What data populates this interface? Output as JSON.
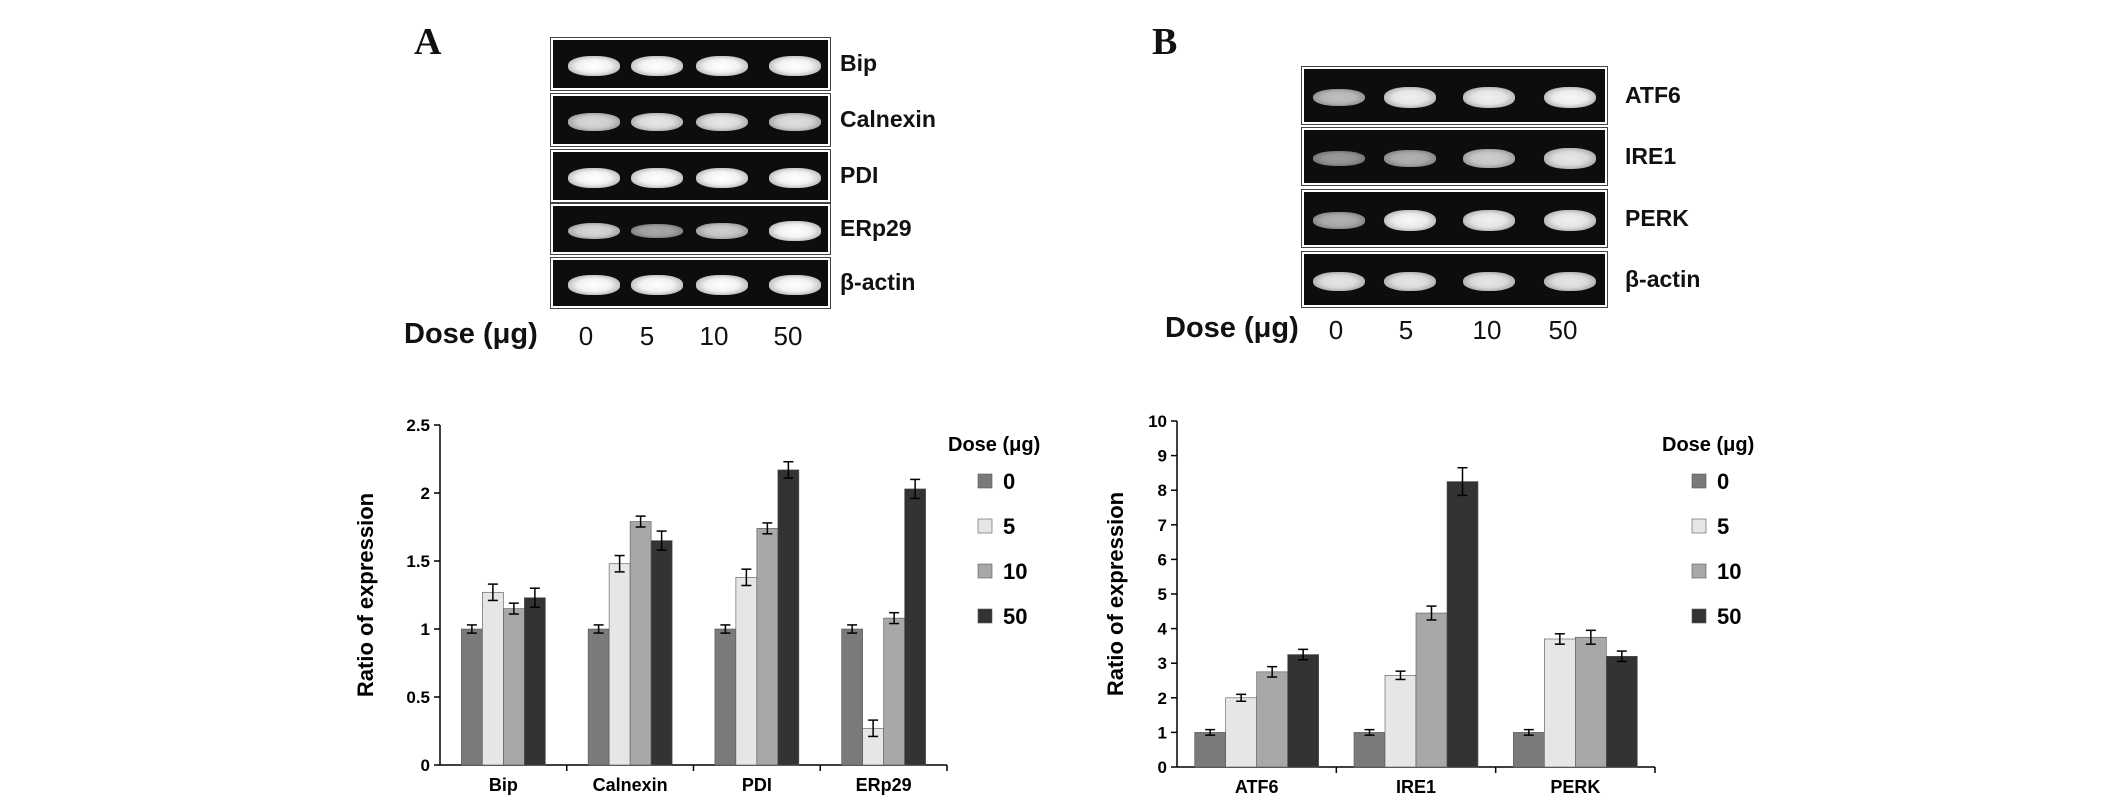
{
  "panels": [
    {
      "letter": "A",
      "gel_rows": [
        {
          "label": "Bip",
          "intensity": [
            1.0,
            1.0,
            1.0,
            1.0
          ]
        },
        {
          "label": "Calnexin",
          "intensity": [
            0.75,
            0.85,
            0.85,
            0.8
          ]
        },
        {
          "label": "PDI",
          "intensity": [
            1.0,
            1.0,
            1.0,
            1.0
          ]
        },
        {
          "label": "ERp29",
          "intensity": [
            0.75,
            0.45,
            0.7,
            1.0
          ]
        },
        {
          "label": "β-actin",
          "intensity": [
            1.0,
            1.0,
            1.0,
            1.0
          ]
        }
      ],
      "dose_label": "Dose (μg)",
      "doses": [
        "0",
        "5",
        "10",
        "50"
      ]
    },
    {
      "letter": "B",
      "gel_rows": [
        {
          "label": "ATF6",
          "intensity": [
            0.6,
            0.9,
            0.9,
            0.95
          ]
        },
        {
          "label": "IRE1",
          "intensity": [
            0.35,
            0.5,
            0.7,
            0.85
          ]
        },
        {
          "label": "PERK",
          "intensity": [
            0.5,
            0.95,
            0.9,
            0.9
          ]
        },
        {
          "label": "β-actin",
          "intensity": [
            0.85,
            0.85,
            0.85,
            0.85
          ]
        }
      ],
      "dose_label": "Dose (μg)",
      "doses": [
        "0",
        "5",
        "10",
        "50"
      ]
    }
  ],
  "series_colors": [
    "#7a7a7a",
    "#e6e6e6",
    "#a8a8a8",
    "#333333"
  ],
  "chart_data": [
    {
      "type": "bar",
      "categories": [
        "Bip",
        "Calnexin",
        "PDI",
        "ERp29"
      ],
      "series": [
        {
          "name": "0",
          "values": [
            1.0,
            1.0,
            1.0,
            1.0
          ],
          "errors": [
            0.03,
            0.03,
            0.03,
            0.03
          ]
        },
        {
          "name": "5",
          "values": [
            1.27,
            1.48,
            1.38,
            0.27
          ],
          "errors": [
            0.06,
            0.06,
            0.06,
            0.06
          ]
        },
        {
          "name": "10",
          "values": [
            1.15,
            1.79,
            1.74,
            1.08
          ],
          "errors": [
            0.04,
            0.04,
            0.04,
            0.04
          ]
        },
        {
          "name": "50",
          "values": [
            1.23,
            1.65,
            2.17,
            2.03
          ],
          "errors": [
            0.07,
            0.07,
            0.06,
            0.07
          ]
        }
      ],
      "ylabel": "Ratio of expression",
      "ylim": [
        0,
        2.5
      ],
      "yticks": [
        "0",
        "0.5",
        "1",
        "1.5",
        "2",
        "2.5"
      ],
      "legend_title": "Dose (μg)",
      "legend_position": "right",
      "grid": false
    },
    {
      "type": "bar",
      "categories": [
        "ATF6",
        "IRE1",
        "PERK"
      ],
      "series": [
        {
          "name": "0",
          "values": [
            1.0,
            1.0,
            1.0
          ],
          "errors": [
            0.08,
            0.08,
            0.08
          ]
        },
        {
          "name": "5",
          "values": [
            2.0,
            2.65,
            3.7
          ],
          "errors": [
            0.1,
            0.12,
            0.15
          ]
        },
        {
          "name": "10",
          "values": [
            2.75,
            4.45,
            3.75
          ],
          "errors": [
            0.15,
            0.2,
            0.2
          ]
        },
        {
          "name": "50",
          "values": [
            3.25,
            8.25,
            3.2
          ],
          "errors": [
            0.15,
            0.4,
            0.15
          ]
        }
      ],
      "ylabel": "Ratio of expression",
      "ylim": [
        0,
        10
      ],
      "yticks": [
        "0",
        "1",
        "2",
        "3",
        "4",
        "5",
        "6",
        "7",
        "8",
        "9",
        "10"
      ],
      "legend_title": "Dose (μg)",
      "legend_position": "right",
      "grid": false
    }
  ]
}
